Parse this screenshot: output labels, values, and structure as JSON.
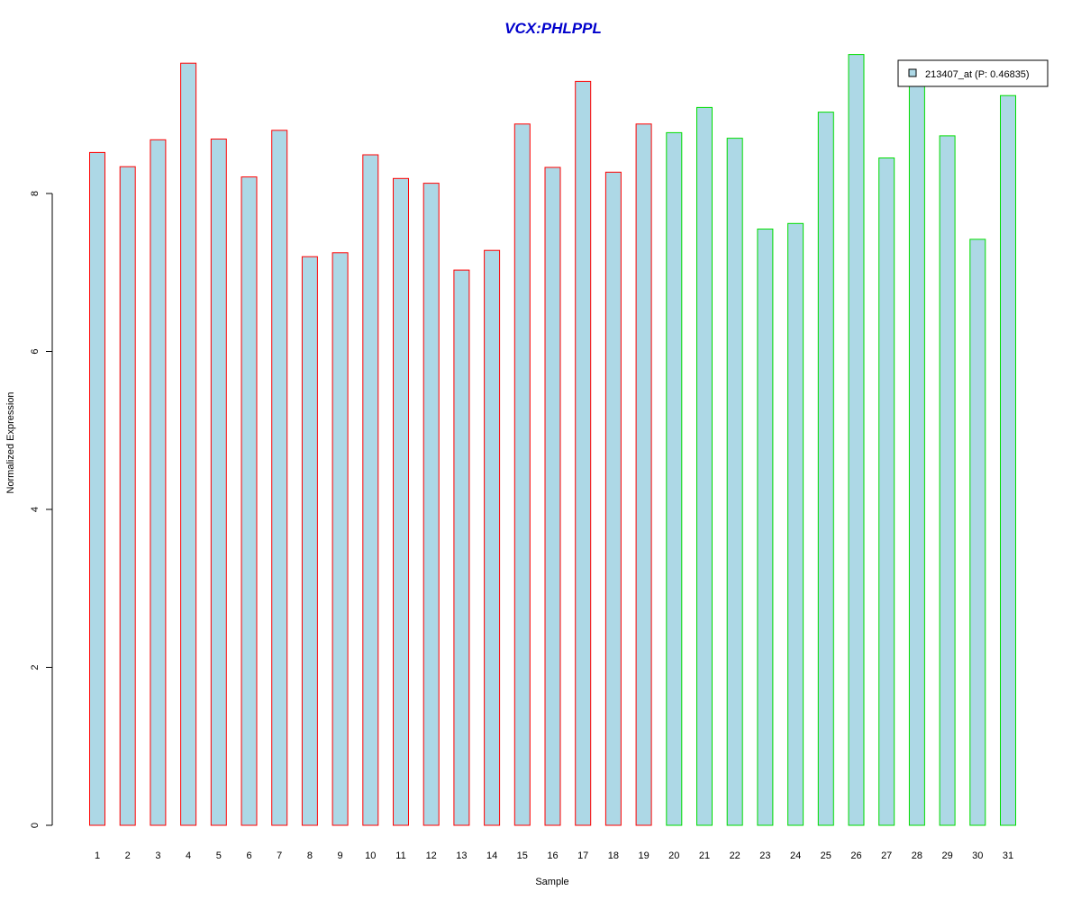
{
  "chart_data": {
    "type": "bar",
    "title": "VCX:PHLPPL",
    "xlabel": "Sample",
    "ylabel": "Normalized Expression",
    "ylim": [
      0,
      9.8
    ],
    "yticks": [
      0,
      2,
      4,
      6,
      8
    ],
    "grid": false,
    "legend_position": "top-right",
    "categories": [
      "1",
      "2",
      "3",
      "4",
      "5",
      "6",
      "7",
      "8",
      "9",
      "10",
      "11",
      "12",
      "13",
      "14",
      "15",
      "16",
      "17",
      "18",
      "19",
      "20",
      "21",
      "22",
      "23",
      "24",
      "25",
      "26",
      "27",
      "28",
      "29",
      "30",
      "31"
    ],
    "series": [
      {
        "name": "213407_at (P: 0.46835)",
        "values": [
          8.52,
          8.34,
          8.68,
          9.65,
          8.69,
          8.21,
          8.8,
          7.2,
          7.25,
          8.49,
          8.19,
          8.13,
          7.03,
          7.28,
          8.88,
          8.33,
          9.42,
          8.27,
          8.88,
          8.77,
          9.09,
          8.7,
          7.55,
          7.62,
          9.03,
          9.76,
          8.45,
          9.45,
          8.73,
          7.42,
          9.24
        ],
        "groups": [
          "red",
          "red",
          "red",
          "red",
          "red",
          "red",
          "red",
          "red",
          "red",
          "red",
          "red",
          "red",
          "red",
          "red",
          "red",
          "red",
          "red",
          "red",
          "red",
          "green",
          "green",
          "green",
          "green",
          "green",
          "green",
          "green",
          "green",
          "green",
          "green",
          "green",
          "green"
        ]
      }
    ],
    "colors": {
      "title": "#0000cc",
      "bar_fill": "#add8e6",
      "group_red": "#ff0000",
      "group_green": "#00dd00",
      "axis": "#000000"
    }
  }
}
